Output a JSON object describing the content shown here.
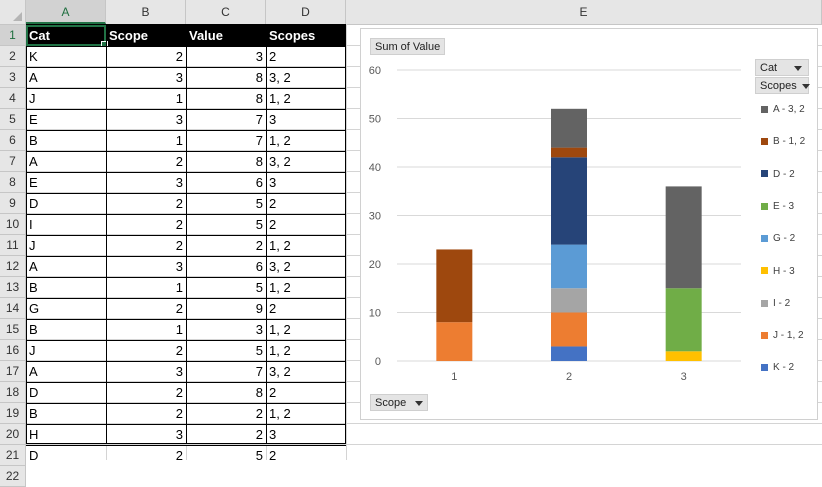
{
  "columns": [
    {
      "letter": "A",
      "left": 26,
      "width": 80
    },
    {
      "letter": "B",
      "left": 106,
      "width": 80
    },
    {
      "letter": "C",
      "left": 186,
      "width": 80
    },
    {
      "letter": "D",
      "left": 266,
      "width": 80
    },
    {
      "letter": "E",
      "left": 346,
      "width": 476
    }
  ],
  "row_numbers": [
    "1",
    "2",
    "3",
    "4",
    "5",
    "6",
    "7",
    "8",
    "9",
    "10",
    "11",
    "12",
    "13",
    "14",
    "15",
    "16",
    "17",
    "18",
    "19",
    "20",
    "21",
    "22"
  ],
  "table": {
    "headers": [
      "Cat",
      "Scope",
      "Value",
      "Scopes"
    ],
    "rows": [
      [
        "K",
        "2",
        "3",
        "2"
      ],
      [
        "A",
        "3",
        "8",
        "3, 2"
      ],
      [
        "J",
        "1",
        "8",
        "1, 2"
      ],
      [
        "E",
        "3",
        "7",
        "3"
      ],
      [
        "B",
        "1",
        "7",
        "1, 2"
      ],
      [
        "A",
        "2",
        "8",
        "3, 2"
      ],
      [
        "E",
        "3",
        "6",
        "3"
      ],
      [
        "D",
        "2",
        "5",
        "2"
      ],
      [
        "I",
        "2",
        "5",
        "2"
      ],
      [
        "J",
        "2",
        "2",
        "1, 2"
      ],
      [
        "A",
        "3",
        "6",
        "3, 2"
      ],
      [
        "B",
        "1",
        "5",
        "1, 2"
      ],
      [
        "G",
        "2",
        "9",
        "2"
      ],
      [
        "B",
        "1",
        "3",
        "1, 2"
      ],
      [
        "J",
        "2",
        "5",
        "1, 2"
      ],
      [
        "A",
        "3",
        "7",
        "3, 2"
      ],
      [
        "D",
        "2",
        "8",
        "2"
      ],
      [
        "B",
        "2",
        "2",
        "1, 2"
      ],
      [
        "H",
        "3",
        "2",
        "3"
      ],
      [
        "D",
        "2",
        "5",
        "2"
      ]
    ]
  },
  "pivot_buttons": {
    "values_field": "Sum of Value",
    "legend_field_1": "Cat",
    "legend_field_2": "Scopes",
    "axis_field": "Scope"
  },
  "chart_data": {
    "type": "bar",
    "stacked": true,
    "categories": [
      "1",
      "2",
      "3"
    ],
    "ylim": [
      0,
      60
    ],
    "yticks": [
      0,
      10,
      20,
      30,
      40,
      50,
      60
    ],
    "grid": true,
    "legend_position": "right",
    "series": [
      {
        "name": "K - 2",
        "color": "#4472c4",
        "values": [
          0,
          3,
          0
        ]
      },
      {
        "name": "J - 1, 2",
        "color": "#ed7d31",
        "values": [
          8,
          7,
          0
        ]
      },
      {
        "name": "I - 2",
        "color": "#a5a5a5",
        "values": [
          0,
          5,
          0
        ]
      },
      {
        "name": "H - 3",
        "color": "#ffc000",
        "values": [
          0,
          0,
          2
        ]
      },
      {
        "name": "G - 2",
        "color": "#5b9bd5",
        "values": [
          0,
          9,
          0
        ]
      },
      {
        "name": "E - 3",
        "color": "#70ad47",
        "values": [
          0,
          0,
          13
        ]
      },
      {
        "name": "D - 2",
        "color": "#264478",
        "values": [
          0,
          18,
          0
        ]
      },
      {
        "name": "B - 1, 2",
        "color": "#9e480e",
        "values": [
          15,
          2,
          0
        ]
      },
      {
        "name": "A - 3, 2",
        "color": "#636363",
        "values": [
          0,
          8,
          21
        ]
      }
    ]
  }
}
